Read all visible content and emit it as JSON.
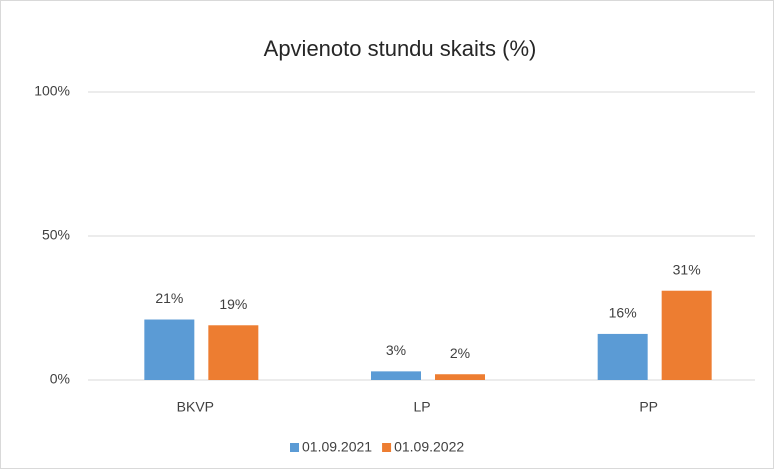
{
  "chart_data": {
    "type": "bar",
    "title": "Apvienoto stundu skaits (%)",
    "categories": [
      "BKVP",
      "LP",
      "PP"
    ],
    "series": [
      {
        "name": "01.09.2021",
        "color": "#5b9bd5",
        "values": [
          21,
          3,
          16
        ],
        "value_labels": [
          "21%",
          "3%",
          "16%"
        ]
      },
      {
        "name": "01.09.2022",
        "color": "#ed7d31",
        "values": [
          19,
          2,
          31
        ],
        "value_labels": [
          "19%",
          "2%",
          "31%"
        ]
      }
    ],
    "ylim": [
      0,
      100
    ],
    "yticks": [
      {
        "value": 0,
        "label": "0%"
      },
      {
        "value": 50,
        "label": "50%"
      },
      {
        "value": 100,
        "label": "100%"
      }
    ],
    "grid": true,
    "legend": "bottom"
  }
}
